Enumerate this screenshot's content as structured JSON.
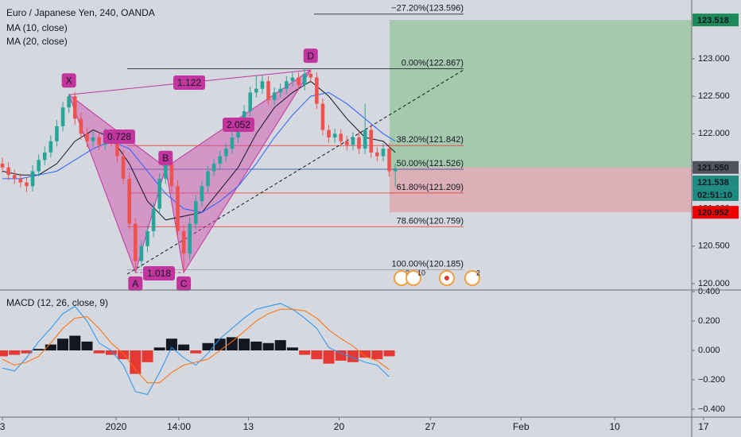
{
  "chart_data": [
    {
      "type": "candlestick",
      "title": "Euro / Japanese Yen, 240, OANDA",
      "up_color": "#26a69a",
      "down_color": "#ef5350",
      "open": [
        121.6,
        121.55,
        121.45,
        121.4,
        121.35,
        121.3,
        121.5,
        121.65,
        121.75,
        121.9,
        122.1,
        122.35,
        122.5,
        122.2,
        122.0,
        121.9,
        121.95,
        121.85,
        122.0,
        121.9,
        121.7,
        121.4,
        120.8,
        120.3,
        120.5,
        120.7,
        121.0,
        121.4,
        121.6,
        121.3,
        120.7,
        120.4,
        120.8,
        121.1,
        121.3,
        121.5,
        121.6,
        121.7,
        121.8,
        121.95,
        122.1,
        122.3,
        122.55,
        122.6,
        122.7,
        122.45,
        122.55,
        122.6,
        122.7,
        122.75,
        122.65,
        122.8,
        122.75,
        122.4,
        122.05,
        121.95,
        122.0,
        121.9,
        121.85,
        121.95,
        121.8,
        122.05,
        121.75,
        121.7,
        121.8,
        121.5
      ],
      "high": [
        121.68,
        121.62,
        121.52,
        121.47,
        121.42,
        121.58,
        121.72,
        121.83,
        121.98,
        122.18,
        122.43,
        122.53,
        122.56,
        122.28,
        122.08,
        122.03,
        122.02,
        122.08,
        122.07,
        121.97,
        121.78,
        121.48,
        120.88,
        120.58,
        120.78,
        121.08,
        121.47,
        121.66,
        121.65,
        121.38,
        120.78,
        120.88,
        121.18,
        121.37,
        121.57,
        121.67,
        121.77,
        121.87,
        122.02,
        122.18,
        122.38,
        122.63,
        122.78,
        122.78,
        122.77,
        122.62,
        122.67,
        122.77,
        122.82,
        122.82,
        122.87,
        122.86,
        122.82,
        122.47,
        122.12,
        122.07,
        122.06,
        121.97,
        122.02,
        122.02,
        122.4,
        122.12,
        121.82,
        121.87,
        121.87,
        121.6
      ],
      "low": [
        121.48,
        121.38,
        121.33,
        121.28,
        121.22,
        121.23,
        121.43,
        121.58,
        121.68,
        121.83,
        122.03,
        122.28,
        122.12,
        121.92,
        121.82,
        121.83,
        121.78,
        121.78,
        121.83,
        121.62,
        121.32,
        120.72,
        120.15,
        120.22,
        120.42,
        120.62,
        120.93,
        121.33,
        121.22,
        120.62,
        120.15,
        120.32,
        120.72,
        121.02,
        121.22,
        121.43,
        121.53,
        121.63,
        121.73,
        121.88,
        122.03,
        122.23,
        122.48,
        122.53,
        122.38,
        122.38,
        122.48,
        122.53,
        122.63,
        122.58,
        122.58,
        122.68,
        122.33,
        121.98,
        121.88,
        121.88,
        121.83,
        121.78,
        121.78,
        121.73,
        121.73,
        121.68,
        121.63,
        121.63,
        121.43,
        121.3
      ],
      "close": [
        121.55,
        121.45,
        121.4,
        121.35,
        121.3,
        121.5,
        121.65,
        121.75,
        121.9,
        122.1,
        122.35,
        122.5,
        122.2,
        122.0,
        121.9,
        121.95,
        121.85,
        122.0,
        121.9,
        121.7,
        121.4,
        120.8,
        120.3,
        120.5,
        120.7,
        121.0,
        121.4,
        121.6,
        121.3,
        120.7,
        120.4,
        120.8,
        121.1,
        121.3,
        121.5,
        121.6,
        121.7,
        121.8,
        121.95,
        122.1,
        122.3,
        122.55,
        122.6,
        122.7,
        122.45,
        122.55,
        122.6,
        122.7,
        122.75,
        122.65,
        122.8,
        122.75,
        122.4,
        122.05,
        121.95,
        122.0,
        121.9,
        121.85,
        121.95,
        121.8,
        122.05,
        121.75,
        121.7,
        121.8,
        121.5,
        121.538
      ],
      "ylim": [
        119.915,
        123.784
      ],
      "yticks": [
        {
          "value": 120,
          "label": "120.000"
        },
        {
          "value": 120.5,
          "label": "120.500"
        },
        {
          "value": 121,
          "label": "121.000"
        },
        {
          "value": 121.5,
          "label": "121.500"
        },
        {
          "value": 122,
          "label": "122.000"
        },
        {
          "value": 122.5,
          "label": "122.500"
        },
        {
          "value": 123,
          "label": "123.000"
        }
      ],
      "overlays": [
        {
          "name": "MA (10, close)",
          "color": "#131722",
          "x": [
            0,
            3,
            6,
            9,
            12,
            15,
            18,
            21,
            24,
            27,
            30,
            33,
            36,
            39,
            42,
            45,
            48,
            51,
            54,
            57,
            60,
            63,
            65
          ],
          "values": [
            121.5,
            121.45,
            121.45,
            121.6,
            121.9,
            122.05,
            121.95,
            121.6,
            121.1,
            120.85,
            120.9,
            120.95,
            121.25,
            121.55,
            122.0,
            122.35,
            122.55,
            122.7,
            122.5,
            122.2,
            121.95,
            121.9,
            121.75
          ]
        },
        {
          "name": "MA (20, close)",
          "color": "#2962ff",
          "x": [
            0,
            3,
            6,
            9,
            12,
            15,
            18,
            21,
            24,
            27,
            30,
            33,
            36,
            39,
            42,
            45,
            48,
            51,
            54,
            57,
            60,
            63,
            65
          ],
          "values": [
            121.4,
            121.4,
            121.45,
            121.5,
            121.65,
            121.8,
            121.9,
            121.8,
            121.5,
            121.2,
            121.0,
            120.95,
            121.1,
            121.3,
            121.6,
            121.95,
            122.25,
            122.5,
            122.55,
            122.4,
            122.2,
            122.0,
            121.9
          ]
        }
      ],
      "fib": [
        {
          "value": 123.596,
          "label": "−27.20%(123.596)",
          "color": "#131722"
        },
        {
          "value": 122.867,
          "label": "0.00%(122.867)",
          "color": "#131722"
        },
        {
          "value": 121.842,
          "label": "38.20%(121.842)",
          "color": "#e53935"
        },
        {
          "value": 121.526,
          "label": "50.00%(121.526)",
          "color": "#1e4fa8"
        },
        {
          "value": 121.209,
          "label": "61.80%(121.209)",
          "color": "#e53935"
        },
        {
          "value": 120.759,
          "label": "78.60%(120.759)",
          "color": "#e53935"
        },
        {
          "value": 120.185,
          "label": "100.00%(120.185)",
          "color": "#9598a1"
        }
      ],
      "position": {
        "target": {
          "value": 123.518,
          "label": "123.518",
          "color": "#1e8a5a"
        },
        "entry": {
          "value": 121.55,
          "label": "121.550",
          "color": "#50535e"
        },
        "stop": {
          "value": 120.952,
          "label": "120.952",
          "color": "#f20000"
        }
      },
      "last_price": {
        "value": 121.538,
        "label": "121.538",
        "color": "#1f8a80"
      },
      "countdown": "02:51:10",
      "pattern": {
        "color": "#c2359e",
        "points": [
          {
            "label": "X",
            "x": 11,
            "value": 122.52
          },
          {
            "label": "A",
            "x": 22,
            "value": 120.15
          },
          {
            "label": "B",
            "x": 27,
            "value": 121.55
          },
          {
            "label": "C",
            "x": 30,
            "value": 120.15
          },
          {
            "label": "D",
            "x": 51,
            "value": 122.85
          }
        ],
        "ratios": [
          "1.122",
          "0.728",
          "2.052",
          "1.018"
        ]
      },
      "events": [
        "2",
        "10",
        "2"
      ]
    },
    {
      "type": "macd",
      "title": "MACD (12, 26, close, 9)",
      "x": [
        0,
        2,
        4,
        6,
        8,
        10,
        12,
        14,
        16,
        18,
        20,
        22,
        24,
        26,
        28,
        30,
        32,
        34,
        36,
        38,
        40,
        42,
        44,
        46,
        48,
        50,
        52,
        54,
        56,
        58,
        60,
        62,
        64
      ],
      "histogram": {
        "up_color": "#131722",
        "down_color": "#e53935",
        "values": [
          -0.04,
          -0.03,
          -0.02,
          0.01,
          0.04,
          0.08,
          0.1,
          0.06,
          -0.02,
          -0.03,
          -0.06,
          -0.16,
          -0.08,
          0.02,
          0.08,
          0.04,
          -0.02,
          0.05,
          0.08,
          0.09,
          0.08,
          0.06,
          0.05,
          0.07,
          0.02,
          -0.03,
          -0.06,
          -0.09,
          -0.07,
          -0.08,
          -0.05,
          -0.06,
          -0.04
        ]
      },
      "series": [
        {
          "color": "#2196f3",
          "values": [
            -0.12,
            -0.14,
            -0.05,
            0.06,
            0.15,
            0.25,
            0.3,
            0.2,
            0.05,
            0.0,
            -0.1,
            -0.28,
            -0.3,
            -0.15,
            0.02,
            -0.05,
            -0.1,
            -0.02,
            0.08,
            0.15,
            0.22,
            0.28,
            0.3,
            0.32,
            0.28,
            0.22,
            0.15,
            0.02,
            -0.02,
            -0.05,
            -0.08,
            -0.1,
            -0.18
          ]
        },
        {
          "color": "#ff6d00",
          "values": [
            -0.06,
            -0.1,
            -0.08,
            -0.04,
            0.05,
            0.15,
            0.22,
            0.23,
            0.15,
            0.05,
            -0.02,
            -0.13,
            -0.22,
            -0.22,
            -0.15,
            -0.1,
            -0.08,
            -0.06,
            0.0,
            0.06,
            0.13,
            0.2,
            0.25,
            0.28,
            0.28,
            0.27,
            0.22,
            0.14,
            0.08,
            0.03,
            -0.04,
            -0.07,
            -0.13
          ]
        }
      ],
      "ylim": [
        -0.454,
        0.411
      ],
      "yticks": [
        {
          "value": 0.4,
          "label": "0.400"
        },
        {
          "value": 0.2,
          "label": "0.200"
        },
        {
          "value": 0,
          "label": "0.000"
        },
        {
          "value": -0.2,
          "label": "−0.200"
        },
        {
          "value": -0.4,
          "label": "−0.400"
        }
      ],
      "xlim": [
        -0.4,
        122.2
      ],
      "xticks": [
        {
          "value": 0,
          "label": "3"
        },
        {
          "value": 18.8,
          "label": "2020"
        },
        {
          "value": 29.2,
          "label": "14:00"
        },
        {
          "value": 40.7,
          "label": "13"
        },
        {
          "value": 55.7,
          "label": "20"
        },
        {
          "value": 70.8,
          "label": "27"
        },
        {
          "value": 85.8,
          "label": "Feb"
        },
        {
          "value": 101.3,
          "label": "10"
        },
        {
          "value": 116,
          "label": "17"
        }
      ]
    }
  ]
}
